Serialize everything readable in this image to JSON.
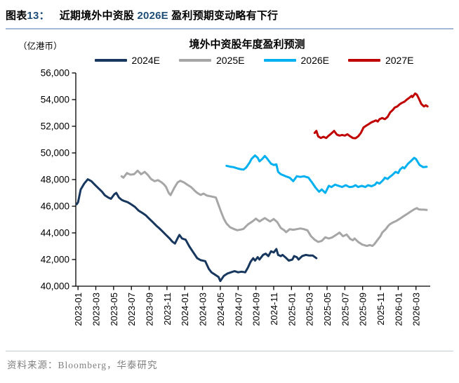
{
  "header": {
    "prefix": "图表",
    "number": "13：",
    "title_before": "近期境外中资股 ",
    "title_highlight": "2026E",
    "title_after": " 盈利预期变动略有下行"
  },
  "chart": {
    "unit_label": "（亿港币）",
    "title": "境外中资股年度盈利预测",
    "source": "资料来源：Bloomberg，华泰研究"
  },
  "colors": {
    "accent": "#1F4E79",
    "rule_top": "#A3B8D8",
    "rule_bottom": "#C4CCD6",
    "source_text": "#7F7F7F",
    "axis": "#000000",
    "navy": "#17375E",
    "gray": "#A6A6A6",
    "cyan": "#00B0F0",
    "red": "#C00000"
  },
  "chart_data": {
    "type": "line",
    "title": "境外中资股年度盈利预测",
    "unit": "亿港币",
    "legend_position": "top",
    "grid": false,
    "ylim": [
      40000,
      56000
    ],
    "y_tick_interval": 2000,
    "y_tick_labels": [
      "56,000",
      "54,000",
      "52,000",
      "50,000",
      "48,000",
      "46,000",
      "44,000",
      "42,000",
      "40,000"
    ],
    "x_unit": "months_since_2023-01",
    "x_tick_step_months": 2,
    "x_tick_labels": [
      "2023-01",
      "2023-03",
      "2023-05",
      "2023-07",
      "2023-09",
      "2023-11",
      "2024-01",
      "2024-03",
      "2024-05",
      "2024-07",
      "2024-09",
      "2024-11",
      "2025-01",
      "2025-03",
      "2025-05",
      "2025-07",
      "2025-09",
      "2025-11",
      "2026-01",
      "2026-03"
    ],
    "series": [
      {
        "name": "2024E",
        "color": "#17375E",
        "points": [
          [
            -0.15,
            46150
          ],
          [
            0,
            46300
          ],
          [
            0.3,
            47260
          ],
          [
            0.7,
            47700
          ],
          [
            1.1,
            48020
          ],
          [
            1.5,
            47880
          ],
          [
            1.9,
            47610
          ],
          [
            2.3,
            47350
          ],
          [
            2.7,
            47090
          ],
          [
            3.0,
            46830
          ],
          [
            3.4,
            46650
          ],
          [
            3.7,
            46560
          ],
          [
            4.1,
            46910
          ],
          [
            4.3,
            47000
          ],
          [
            4.6,
            46650
          ],
          [
            4.9,
            46480
          ],
          [
            5.2,
            46390
          ],
          [
            5.6,
            46300
          ],
          [
            6.0,
            46130
          ],
          [
            6.4,
            45950
          ],
          [
            6.8,
            45680
          ],
          [
            7.2,
            45510
          ],
          [
            7.6,
            45330
          ],
          [
            8.0,
            45070
          ],
          [
            8.4,
            44810
          ],
          [
            8.8,
            44540
          ],
          [
            9.1,
            44370
          ],
          [
            9.5,
            44110
          ],
          [
            9.9,
            43840
          ],
          [
            10.3,
            43580
          ],
          [
            10.6,
            43350
          ],
          [
            10.9,
            43200
          ],
          [
            11.2,
            43600
          ],
          [
            11.4,
            43850
          ],
          [
            11.7,
            43580
          ],
          [
            12.1,
            43490
          ],
          [
            12.5,
            43000
          ],
          [
            12.9,
            42600
          ],
          [
            13.4,
            42100
          ],
          [
            13.8,
            41950
          ],
          [
            14.3,
            41880
          ],
          [
            14.7,
            41300
          ],
          [
            15.0,
            41040
          ],
          [
            15.4,
            40870
          ],
          [
            15.8,
            40690
          ],
          [
            16.0,
            40390
          ],
          [
            16.4,
            40780
          ],
          [
            16.8,
            40950
          ],
          [
            17.2,
            41040
          ],
          [
            17.6,
            41130
          ],
          [
            18.0,
            41040
          ],
          [
            18.4,
            41090
          ],
          [
            18.8,
            41040
          ],
          [
            19.1,
            41390
          ],
          [
            19.4,
            41830
          ],
          [
            19.7,
            42100
          ],
          [
            19.9,
            41920
          ],
          [
            20.2,
            42180
          ],
          [
            20.4,
            42000
          ],
          [
            20.8,
            42350
          ],
          [
            21.1,
            42440
          ],
          [
            21.4,
            42260
          ],
          [
            21.7,
            42620
          ],
          [
            22.0,
            42530
          ],
          [
            22.3,
            42790
          ],
          [
            22.5,
            42350
          ],
          [
            22.8,
            42260
          ],
          [
            23.0,
            42350
          ],
          [
            23.3,
            42180
          ],
          [
            23.7,
            41920
          ],
          [
            24.1,
            42000
          ],
          [
            24.3,
            42260
          ],
          [
            24.6,
            42180
          ],
          [
            24.8,
            42000
          ],
          [
            25.2,
            42260
          ],
          [
            25.6,
            42350
          ],
          [
            26.0,
            42300
          ],
          [
            26.4,
            42300
          ],
          [
            26.8,
            42100
          ]
        ]
      },
      {
        "name": "2025E",
        "color": "#A6A6A6",
        "points": [
          [
            4.9,
            48250
          ],
          [
            5.1,
            48140
          ],
          [
            5.5,
            48490
          ],
          [
            5.9,
            48370
          ],
          [
            6.3,
            48400
          ],
          [
            6.7,
            48670
          ],
          [
            7.1,
            48400
          ],
          [
            7.5,
            48580
          ],
          [
            7.9,
            48310
          ],
          [
            8.2,
            48050
          ],
          [
            8.6,
            47880
          ],
          [
            9.0,
            47960
          ],
          [
            9.4,
            47790
          ],
          [
            9.7,
            47610
          ],
          [
            9.9,
            47440
          ],
          [
            10.2,
            47000
          ],
          [
            10.4,
            46830
          ],
          [
            10.8,
            47350
          ],
          [
            11.2,
            47790
          ],
          [
            11.5,
            47910
          ],
          [
            11.9,
            47790
          ],
          [
            12.3,
            47610
          ],
          [
            12.7,
            47440
          ],
          [
            13.1,
            47180
          ],
          [
            13.4,
            47000
          ],
          [
            13.8,
            46850
          ],
          [
            14.1,
            46950
          ],
          [
            14.5,
            46800
          ],
          [
            14.9,
            46750
          ],
          [
            15.2,
            46700
          ],
          [
            15.5,
            46650
          ],
          [
            15.8,
            46100
          ],
          [
            16.1,
            45550
          ],
          [
            16.4,
            45050
          ],
          [
            16.7,
            44700
          ],
          [
            17.1,
            44420
          ],
          [
            17.5,
            44300
          ],
          [
            17.9,
            44200
          ],
          [
            18.3,
            44250
          ],
          [
            18.6,
            44300
          ],
          [
            19.1,
            44630
          ],
          [
            19.7,
            44900
          ],
          [
            20.0,
            45070
          ],
          [
            20.4,
            44860
          ],
          [
            21.0,
            45110
          ],
          [
            21.3,
            44980
          ],
          [
            21.6,
            44860
          ],
          [
            22.0,
            45040
          ],
          [
            22.4,
            44810
          ],
          [
            22.8,
            44370
          ],
          [
            23.2,
            44190
          ],
          [
            23.4,
            44050
          ],
          [
            23.8,
            44280
          ],
          [
            24.2,
            44230
          ],
          [
            24.6,
            44280
          ],
          [
            25.0,
            44330
          ],
          [
            25.4,
            44280
          ],
          [
            25.8,
            44190
          ],
          [
            26.2,
            43750
          ],
          [
            26.6,
            43490
          ],
          [
            27.0,
            43320
          ],
          [
            27.4,
            43400
          ],
          [
            27.8,
            43670
          ],
          [
            28.2,
            43580
          ],
          [
            28.6,
            43670
          ],
          [
            29.0,
            43840
          ],
          [
            29.4,
            44020
          ],
          [
            29.8,
            43750
          ],
          [
            30.2,
            43880
          ],
          [
            30.6,
            43550
          ],
          [
            30.9,
            43450
          ],
          [
            31.1,
            43580
          ],
          [
            31.5,
            43320
          ],
          [
            31.9,
            43140
          ],
          [
            32.3,
            43050
          ],
          [
            32.5,
            43020
          ],
          [
            32.8,
            43090
          ],
          [
            33.1,
            43020
          ],
          [
            33.3,
            43140
          ],
          [
            33.7,
            43490
          ],
          [
            34.0,
            43750
          ],
          [
            34.2,
            44020
          ],
          [
            34.6,
            44280
          ],
          [
            34.9,
            44540
          ],
          [
            35.1,
            44670
          ],
          [
            35.5,
            44810
          ],
          [
            35.8,
            44900
          ],
          [
            36.2,
            45070
          ],
          [
            36.6,
            45250
          ],
          [
            37.0,
            45420
          ],
          [
            37.4,
            45600
          ],
          [
            37.8,
            45770
          ],
          [
            38.1,
            45860
          ],
          [
            38.3,
            45770
          ],
          [
            38.6,
            45740
          ],
          [
            38.9,
            45740
          ],
          [
            39.2,
            45720
          ]
        ]
      },
      {
        "name": "2026E",
        "color": "#00B0F0",
        "points": [
          [
            16.7,
            49030
          ],
          [
            17.1,
            48970
          ],
          [
            17.5,
            48930
          ],
          [
            17.9,
            48840
          ],
          [
            18.2,
            48790
          ],
          [
            18.6,
            48750
          ],
          [
            18.9,
            48900
          ],
          [
            19.3,
            49280
          ],
          [
            19.5,
            49540
          ],
          [
            19.9,
            49810
          ],
          [
            20.2,
            49630
          ],
          [
            20.4,
            49370
          ],
          [
            20.7,
            49540
          ],
          [
            21.0,
            49770
          ],
          [
            21.2,
            49630
          ],
          [
            21.5,
            49370
          ],
          [
            21.7,
            49190
          ],
          [
            22.0,
            49100
          ],
          [
            22.3,
            49140
          ],
          [
            22.5,
            48580
          ],
          [
            22.8,
            48400
          ],
          [
            23.1,
            48320
          ],
          [
            23.4,
            48230
          ],
          [
            23.8,
            48140
          ],
          [
            24.2,
            47880
          ],
          [
            24.6,
            48250
          ],
          [
            25.0,
            48200
          ],
          [
            25.4,
            48250
          ],
          [
            25.9,
            48150
          ],
          [
            26.3,
            47790
          ],
          [
            26.7,
            47400
          ],
          [
            27.1,
            47090
          ],
          [
            27.4,
            47260
          ],
          [
            27.8,
            47000
          ],
          [
            28.2,
            47530
          ],
          [
            28.5,
            47440
          ],
          [
            28.9,
            47620
          ],
          [
            29.3,
            47530
          ],
          [
            29.7,
            47440
          ],
          [
            30.1,
            47580
          ],
          [
            30.5,
            47440
          ],
          [
            30.9,
            47470
          ],
          [
            31.2,
            47580
          ],
          [
            31.5,
            47440
          ],
          [
            31.9,
            47530
          ],
          [
            32.3,
            47440
          ],
          [
            32.6,
            47580
          ],
          [
            33.0,
            47500
          ],
          [
            33.4,
            47620
          ],
          [
            33.6,
            47790
          ],
          [
            33.9,
            47700
          ],
          [
            34.3,
            47960
          ],
          [
            34.5,
            48140
          ],
          [
            34.8,
            48050
          ],
          [
            35.1,
            48230
          ],
          [
            35.3,
            48320
          ],
          [
            35.7,
            48580
          ],
          [
            36.0,
            48490
          ],
          [
            36.2,
            48750
          ],
          [
            36.5,
            48930
          ],
          [
            36.7,
            48840
          ],
          [
            37.1,
            49190
          ],
          [
            37.4,
            49370
          ],
          [
            37.8,
            49630
          ],
          [
            38.0,
            49540
          ],
          [
            38.4,
            49100
          ],
          [
            38.8,
            48930
          ],
          [
            39.2,
            48960
          ]
        ]
      },
      {
        "name": "2027E",
        "color": "#C00000",
        "points": [
          [
            26.6,
            51500
          ],
          [
            26.8,
            51650
          ],
          [
            27.0,
            51250
          ],
          [
            27.3,
            51120
          ],
          [
            27.6,
            51210
          ],
          [
            27.9,
            51120
          ],
          [
            28.2,
            51300
          ],
          [
            28.5,
            51470
          ],
          [
            28.8,
            51650
          ],
          [
            29.1,
            51380
          ],
          [
            29.4,
            51300
          ],
          [
            29.7,
            51350
          ],
          [
            30.0,
            51300
          ],
          [
            30.3,
            51400
          ],
          [
            30.6,
            51250
          ],
          [
            30.9,
            51120
          ],
          [
            31.2,
            51100
          ],
          [
            31.5,
            51250
          ],
          [
            31.8,
            51500
          ],
          [
            32.1,
            51910
          ],
          [
            32.4,
            52050
          ],
          [
            32.7,
            52170
          ],
          [
            33.0,
            52300
          ],
          [
            33.2,
            52350
          ],
          [
            33.5,
            52440
          ],
          [
            33.7,
            52350
          ],
          [
            33.9,
            52530
          ],
          [
            34.2,
            52620
          ],
          [
            34.5,
            52530
          ],
          [
            34.8,
            52700
          ],
          [
            35.1,
            53050
          ],
          [
            35.4,
            53230
          ],
          [
            35.6,
            53400
          ],
          [
            35.9,
            53490
          ],
          [
            36.2,
            53670
          ],
          [
            36.4,
            53750
          ],
          [
            36.7,
            53840
          ],
          [
            37.0,
            54020
          ],
          [
            37.2,
            54110
          ],
          [
            37.5,
            54280
          ],
          [
            37.6,
            54190
          ],
          [
            37.9,
            54460
          ],
          [
            38.1,
            54370
          ],
          [
            38.3,
            54110
          ],
          [
            38.6,
            53670
          ],
          [
            38.9,
            53490
          ],
          [
            39.1,
            53580
          ],
          [
            39.3,
            53490
          ]
        ]
      }
    ]
  }
}
